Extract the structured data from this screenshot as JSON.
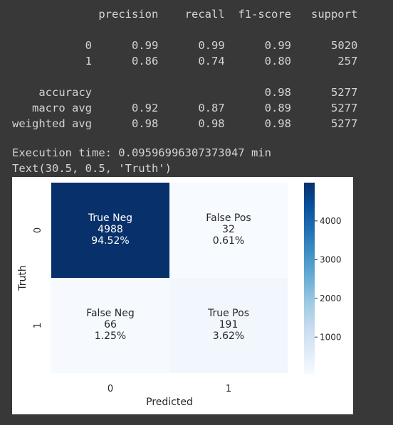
{
  "report": {
    "columns": [
      "precision",
      "recall",
      "f1-score",
      "support"
    ],
    "class_rows": [
      {
        "label": "0",
        "precision": "0.99",
        "recall": "0.99",
        "f1": "0.99",
        "support": "5020"
      },
      {
        "label": "1",
        "precision": "0.86",
        "recall": "0.74",
        "f1": "0.80",
        "support": "257"
      }
    ],
    "summary_rows": [
      {
        "label": "accuracy",
        "precision": "",
        "recall": "",
        "f1": "0.98",
        "support": "5277"
      },
      {
        "label": "macro avg",
        "precision": "0.92",
        "recall": "0.87",
        "f1": "0.89",
        "support": "5277"
      },
      {
        "label": "weighted avg",
        "precision": "0.98",
        "recall": "0.98",
        "f1": "0.98",
        "support": "5277"
      }
    ]
  },
  "execution_line": "Execution time: 0.09596996307373047 min",
  "text_repr_line": "Text(30.5, 0.5, 'Truth')",
  "chart_data": {
    "type": "heatmap",
    "xlabel": "Predicted",
    "ylabel": "Truth",
    "x_ticks": [
      "0",
      "1"
    ],
    "y_ticks": [
      "0",
      "1"
    ],
    "cells": [
      [
        {
          "name": "True Neg",
          "count": "4988",
          "pct": "94.52%",
          "value": 4988
        },
        {
          "name": "False Pos",
          "count": "32",
          "pct": "0.61%",
          "value": 32
        }
      ],
      [
        {
          "name": "False Neg",
          "count": "66",
          "pct": "1.25%",
          "value": 66
        },
        {
          "name": "True Pos",
          "count": "191",
          "pct": "3.62%",
          "value": 191
        }
      ]
    ],
    "colormap": "Blues",
    "vmin": 32,
    "vmax": 4988,
    "colorbar_ticks": [
      1000,
      2000,
      3000,
      4000
    ],
    "colorbar_tick_labels": [
      "1000",
      "2000",
      "3000",
      "4000"
    ]
  }
}
